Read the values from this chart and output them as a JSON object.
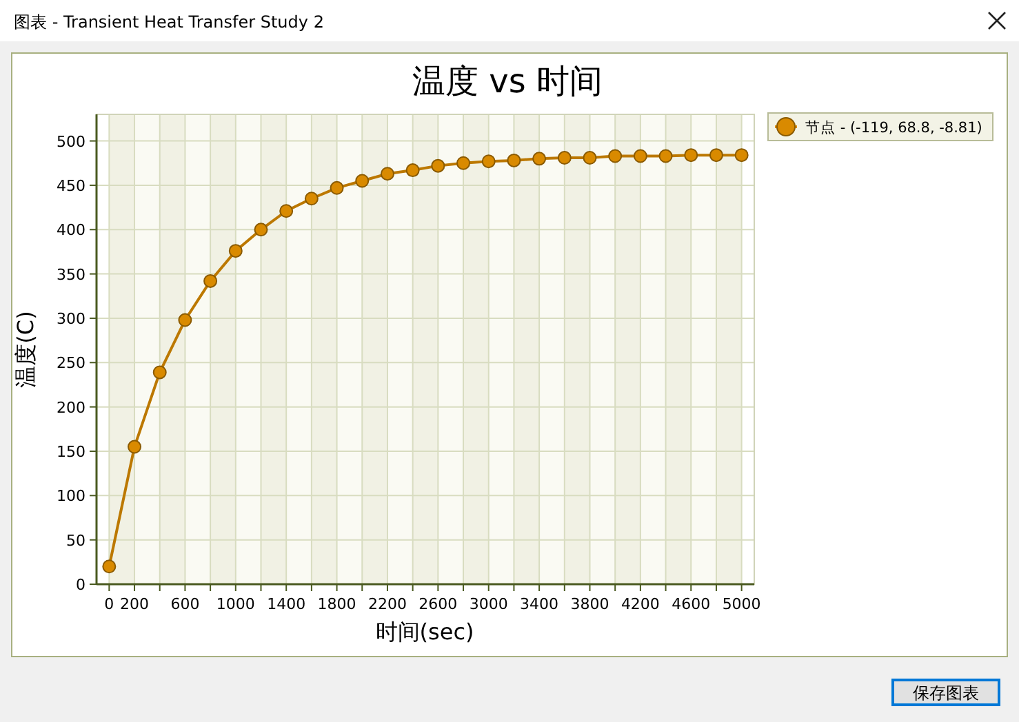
{
  "chart_data": {
    "type": "line",
    "title": "温度 vs 时间",
    "xlabel": "时间(sec)",
    "ylabel": "温度(C)",
    "annotations": [
      "图表 - Transient Heat Transfer Study 2",
      "保存图表"
    ],
    "x": [
      0,
      200,
      400,
      600,
      800,
      1000,
      1200,
      1400,
      1600,
      1800,
      2000,
      2200,
      2400,
      2600,
      2800,
      3000,
      3200,
      3400,
      3600,
      3800,
      4000,
      4200,
      4400,
      4600,
      4800,
      5000
    ],
    "series": [
      {
        "name": "节点 - (-119, 68.8, -8.81)",
        "color": "#d98a00",
        "values": [
          20,
          155,
          239,
          298,
          342,
          376,
          400,
          421,
          435,
          447,
          455,
          463,
          467,
          472,
          475,
          477,
          478,
          480,
          481,
          481,
          483,
          483,
          483,
          484,
          484,
          484
        ]
      }
    ],
    "xlim": [
      -100,
      5100
    ],
    "ylim": [
      0,
      530
    ],
    "xticks": [
      0,
      200,
      {
        "value": 400,
        "label": null
      },
      600,
      {
        "value": 800,
        "label": null
      },
      1000,
      {
        "value": 1200,
        "label": null
      },
      1400,
      {
        "value": 1600,
        "label": null
      },
      1800,
      {
        "value": 2000,
        "label": null
      },
      2200,
      {
        "value": 2400,
        "label": null
      },
      2600,
      {
        "value": 2800,
        "label": null
      },
      3000,
      {
        "value": 3200,
        "label": null
      },
      3400,
      {
        "value": 3600,
        "label": null
      },
      3800,
      {
        "value": 4000,
        "label": null
      },
      4200,
      {
        "value": 4400,
        "label": null
      },
      4600,
      {
        "value": 4800,
        "label": null
      },
      5000
    ],
    "yticks": [
      0,
      50,
      100,
      150,
      200,
      250,
      300,
      350,
      400,
      450,
      500
    ],
    "grid": true,
    "legend": "top right",
    "marker": "circle",
    "line_style": "solid"
  }
}
